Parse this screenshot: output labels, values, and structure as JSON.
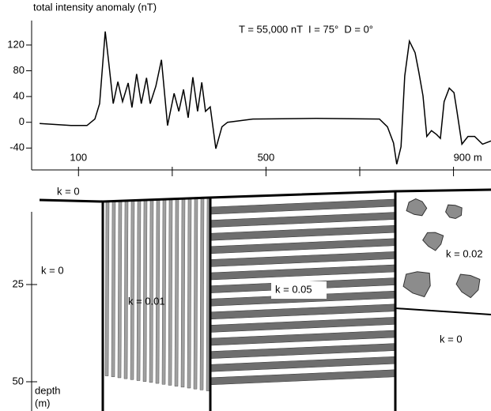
{
  "chart_data": {
    "type": "line",
    "y_label": "total intensity anomaly (nT)",
    "annotation": "T = 55,000 nT  I = 75°  D = 0°",
    "x": [
      17,
      84,
      118,
      135,
      145,
      157,
      165,
      174,
      184,
      194,
      206,
      214,
      224,
      234,
      245,
      253,
      265,
      277,
      290,
      304,
      314,
      324,
      334,
      344,
      354,
      363,
      371,
      381,
      393,
      406,
      418,
      472,
      607,
      742,
      759,
      772,
      779,
      788,
      796,
      806,
      818,
      826,
      835,
      843,
      853,
      864,
      872,
      880,
      891,
      901,
      907,
      918,
      931,
      945,
      962,
      980
    ],
    "series": [
      {
        "color": "#000000",
        "values": [
          -2,
          -5,
          -5,
          5,
          29,
          141,
          90,
          29,
          63,
          32,
          61,
          23,
          75,
          29,
          69,
          29,
          56,
          97,
          -5,
          45,
          17,
          51,
          7,
          70,
          17,
          62,
          17,
          24,
          -41,
          -7,
          0,
          5,
          6,
          5,
          -7,
          -32,
          -65,
          -38,
          72,
          126,
          108,
          78,
          41,
          -22,
          -13,
          -19,
          -25,
          32,
          53,
          46,
          19,
          -34,
          -22,
          -22,
          -34,
          -29
        ]
      }
    ],
    "xlim": [
      0,
      980
    ],
    "ylim": [
      -74,
      158
    ],
    "xticks": [
      100,
      500,
      {
        "value": 900,
        "label": "900 m"
      }
    ],
    "xminorticks": [
      300,
      700
    ],
    "yticks": [
      -40,
      0,
      40,
      80,
      120
    ]
  },
  "section": {
    "labels": [
      "k = 0",
      "k = 0",
      "k = 0.01",
      "k = 0.05",
      "k = 0.02",
      "k = 0"
    ],
    "depth_ticks": [
      25,
      50
    ],
    "depth_label": "depth",
    "depth_unit": "(m)"
  }
}
